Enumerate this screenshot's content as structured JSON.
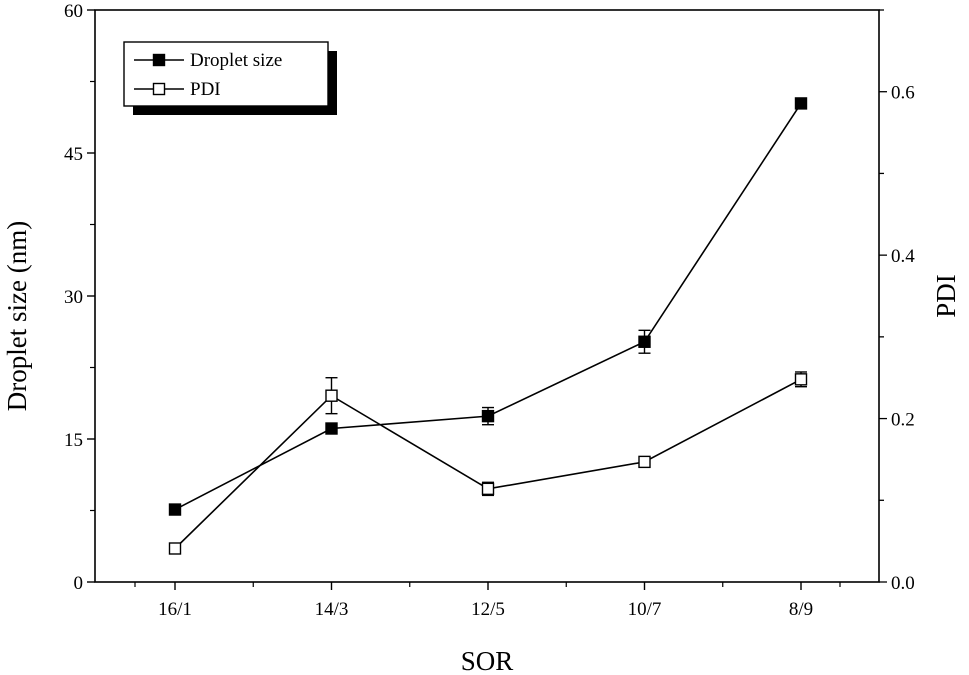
{
  "chart_data": {
    "type": "line",
    "title": "",
    "xlabel": "SOR",
    "ylabel": "Droplet size (nm)",
    "y2label": "PDI",
    "categories": [
      "16/1",
      "14/3",
      "12/5",
      "10/7",
      "8/9"
    ],
    "ylim": [
      0,
      60
    ],
    "y2lim": [
      0,
      0.7
    ],
    "yticks": [
      "0",
      "15",
      "30",
      "45",
      "60"
    ],
    "y2ticks": [
      "0.0",
      "0.2",
      "0.4",
      "0.6"
    ],
    "legend_position": "top-left",
    "grid": false,
    "series": [
      {
        "name": "Droplet size",
        "axis": "left",
        "marker": "filled-square",
        "values": [
          7.6,
          16.1,
          17.4,
          25.2,
          50.2
        ],
        "errors": [
          0.4,
          0.4,
          0.9,
          1.2,
          0.4
        ]
      },
      {
        "name": "PDI",
        "axis": "right",
        "marker": "open-square",
        "values": [
          0.041,
          0.228,
          0.114,
          0.147,
          0.248
        ],
        "errors": [
          0.004,
          0.022,
          0.008,
          0.004,
          0.009
        ]
      }
    ]
  }
}
